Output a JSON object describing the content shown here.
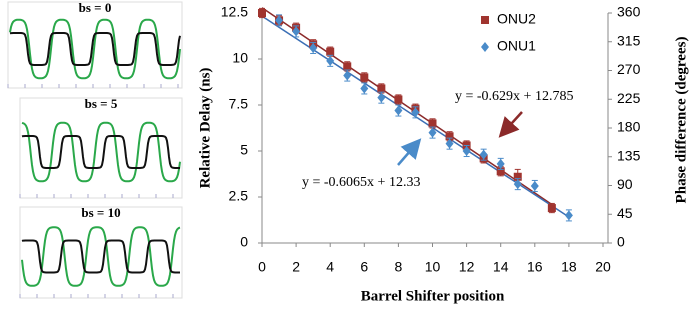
{
  "panels": [
    {
      "label": "bs = 0"
    },
    {
      "label": "bs = 5"
    },
    {
      "label": "bs = 10"
    }
  ],
  "chart_data": {
    "type": "scatter",
    "x_label": "Barrel Shifter position",
    "y_label": "Relative Delay (ns)",
    "y2_label": "Phase difference (degrees)",
    "xlim": [
      0,
      20
    ],
    "xticks": [
      0,
      2,
      4,
      6,
      8,
      10,
      12,
      14,
      16,
      18,
      20
    ],
    "ylim": [
      0,
      12.5
    ],
    "yticks": [
      0,
      2.5,
      5,
      7.5,
      10,
      12.5
    ],
    "y2lim": [
      0,
      360
    ],
    "y2ticks": [
      0,
      45,
      90,
      135,
      180,
      225,
      270,
      315,
      360
    ],
    "series": [
      {
        "name": "ONU2",
        "color": "#a0342f",
        "marker": "square",
        "x": [
          0,
          1,
          2,
          3,
          4,
          5,
          6,
          7,
          8,
          9,
          10,
          11,
          12,
          13,
          14,
          15,
          17
        ],
        "values": [
          12.5,
          12.1,
          11.7,
          10.8,
          10.4,
          9.6,
          9.0,
          8.4,
          7.8,
          7.3,
          6.5,
          5.8,
          5.3,
          4.6,
          3.9,
          3.6,
          1.9
        ],
        "errors": [
          0.25,
          0.25,
          0.25,
          0.25,
          0.25,
          0.25,
          0.25,
          0.25,
          0.25,
          0.25,
          0.25,
          0.25,
          0.25,
          0.25,
          0.25,
          0.4,
          0.25
        ]
      },
      {
        "name": "ONU1",
        "color": "#4a8bc9",
        "marker": "diamond",
        "x": [
          1,
          2,
          3,
          4,
          5,
          6,
          7,
          8,
          9,
          10,
          11,
          12,
          13,
          14,
          15,
          16,
          18
        ],
        "values": [
          12.1,
          11.5,
          10.6,
          9.9,
          9.1,
          8.4,
          7.9,
          7.2,
          7.1,
          6.0,
          5.4,
          5.0,
          4.8,
          4.3,
          3.2,
          3.1,
          1.5
        ],
        "errors": [
          0.3,
          0.3,
          0.3,
          0.3,
          0.3,
          0.3,
          0.3,
          0.3,
          0.3,
          0.3,
          0.3,
          0.3,
          0.3,
          0.3,
          0.3,
          0.3,
          0.3
        ]
      }
    ],
    "trendlines": [
      {
        "label": "y = -0.629x + 12.785",
        "slope": -0.629,
        "intercept": 12.785,
        "color": "#8b2a2a"
      },
      {
        "label": "y = -0.6065x + 12.33",
        "slope": -0.6065,
        "intercept": 12.33,
        "color": "#3b6fb5"
      }
    ]
  }
}
